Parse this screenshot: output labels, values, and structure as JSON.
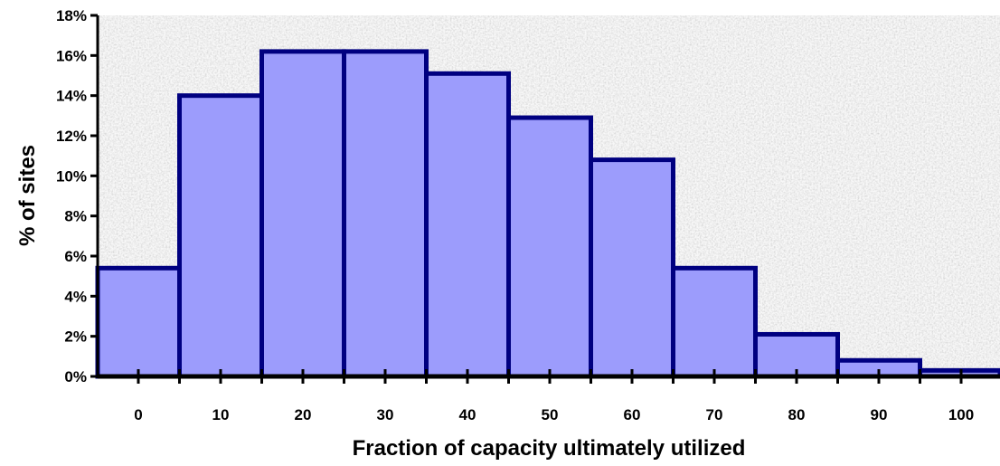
{
  "chart_data": {
    "type": "bar",
    "title": "",
    "xlabel": "Fraction of capacity ultimately utilized",
    "ylabel": "% of sites",
    "categories": [
      "0",
      "10",
      "20",
      "30",
      "40",
      "50",
      "60",
      "70",
      "80",
      "90",
      "100"
    ],
    "values": [
      5.4,
      14.0,
      16.2,
      16.2,
      15.1,
      12.9,
      10.8,
      5.4,
      2.1,
      0.8,
      0.3
    ],
    "ylim": [
      0,
      18
    ],
    "yticks": [
      "0%",
      "2%",
      "4%",
      "6%",
      "8%",
      "10%",
      "12%",
      "14%",
      "16%",
      "18%"
    ],
    "ytick_values": [
      0,
      2,
      4,
      6,
      8,
      10,
      12,
      14,
      16,
      18
    ],
    "grid": false,
    "legend": "none",
    "colors": {
      "bar_fill": "#9c9cfc",
      "bar_edge": "#000080",
      "axis": "#000000",
      "plot_background": "#e3e3e3"
    }
  }
}
